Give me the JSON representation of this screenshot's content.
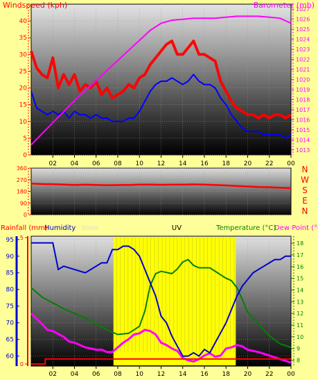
{
  "colors": {
    "page_bg": "#ffff99",
    "wind": "#ff0000",
    "wind_avg": "#0000ff",
    "barometer": "#ff00ff",
    "direction": "#ff0000",
    "rainfall": "#ff0000",
    "humidity": "#0000cc",
    "solar": "#ffff00",
    "uv": "#ff00ff",
    "temperature": "#008000",
    "dewpoint": "#ff00ff",
    "axis_left": "#ff0000",
    "axis_right": "#ff00ff",
    "axis_humidity": "#0000cc",
    "axis_temp": "#008000"
  },
  "x_ticks": [
    "02",
    "04",
    "06",
    "08",
    "10",
    "12",
    "14",
    "16",
    "18",
    "20",
    "22",
    "00"
  ],
  "chart_data": [
    {
      "type": "line",
      "name": "wind-barometer",
      "title": "",
      "left_axis_label": "Windspeed (kph)",
      "right_axis_label": "Barometer (mb)",
      "xlim": [
        0,
        24
      ],
      "ylim": [
        0,
        45
      ],
      "y2lim": [
        1012.5,
        1027.5
      ],
      "left_ticks": [
        0,
        5,
        10,
        15,
        20,
        25,
        30,
        35,
        40
      ],
      "right_ticks": [
        1013,
        1014,
        1015,
        1016,
        1017,
        1018,
        1019,
        1020,
        1021,
        1022,
        1023,
        1024,
        1025,
        1026,
        1027
      ],
      "series": [
        {
          "name": "Gust",
          "x": [
            0,
            0.5,
            1,
            1.5,
            2,
            2.5,
            3,
            3.5,
            4,
            4.5,
            5,
            5.5,
            6,
            6.5,
            7,
            7.5,
            8,
            8.5,
            9,
            9.5,
            10,
            10.5,
            11,
            11.5,
            12,
            12.5,
            13,
            13.5,
            14,
            14.5,
            15,
            15.5,
            16,
            16.5,
            17,
            17.5,
            18,
            18.5,
            19,
            19.5,
            20,
            20.5,
            21,
            21.5,
            22,
            22.5,
            23,
            23.5,
            24
          ],
          "values": [
            31,
            26,
            24,
            23,
            29,
            20,
            24,
            21,
            24,
            19,
            21,
            20,
            22,
            18,
            20,
            17,
            18,
            19,
            21,
            20,
            23,
            24,
            27,
            29,
            31,
            33,
            34,
            30,
            30,
            32,
            34,
            30,
            30,
            29,
            28,
            22,
            19,
            16,
            14,
            13,
            12,
            12,
            11,
            12,
            11,
            12,
            12,
            11,
            12
          ]
        },
        {
          "name": "Average",
          "x": [
            0,
            0.5,
            1,
            1.5,
            2,
            2.5,
            3,
            3.5,
            4,
            4.5,
            5,
            5.5,
            6,
            6.5,
            7,
            7.5,
            8,
            8.5,
            9,
            9.5,
            10,
            10.5,
            11,
            11.5,
            12,
            12.5,
            13,
            13.5,
            14,
            14.5,
            15,
            15.5,
            16,
            16.5,
            17,
            17.5,
            18,
            18.5,
            19,
            19.5,
            20,
            20.5,
            21,
            21.5,
            22,
            22.5,
            23,
            23.5,
            24
          ],
          "values": [
            19,
            14,
            13,
            12,
            13,
            12,
            13,
            11,
            13,
            12,
            12,
            11,
            12,
            11,
            11,
            10,
            10,
            10,
            11,
            11,
            13,
            16,
            19,
            21,
            22,
            22,
            23,
            22,
            21,
            22,
            24,
            22,
            21,
            21,
            20,
            17,
            15,
            12,
            10,
            8,
            7,
            7,
            7,
            6,
            6,
            6,
            6,
            5,
            6
          ]
        },
        {
          "name": "Barometer",
          "axis": "right",
          "x": [
            0,
            1,
            2,
            3,
            4,
            5,
            6,
            7,
            8,
            9,
            10,
            11,
            12,
            13,
            14,
            15,
            16,
            17,
            18,
            19,
            20,
            21,
            22,
            23,
            24
          ],
          "values": [
            1013.5,
            1014.6,
            1015.7,
            1016.8,
            1017.9,
            1018.9,
            1019.9,
            1020.9,
            1021.9,
            1022.9,
            1023.9,
            1024.9,
            1025.6,
            1025.9,
            1026.0,
            1026.1,
            1026.1,
            1026.1,
            1026.2,
            1026.3,
            1026.3,
            1026.3,
            1026.2,
            1026.1,
            1025.6
          ]
        }
      ]
    },
    {
      "type": "line",
      "name": "wind-direction",
      "xlim": [
        0,
        24
      ],
      "ylim": [
        0,
        360
      ],
      "left_ticks": [
        0,
        90,
        180,
        270,
        360
      ],
      "compass_labels": [
        "N",
        "W",
        "S",
        "E",
        "N"
      ],
      "series": [
        {
          "name": "Direction",
          "x": [
            0,
            1,
            2,
            3,
            4,
            5,
            6,
            7,
            8,
            9,
            10,
            11,
            12,
            13,
            14,
            15,
            16,
            17,
            18,
            19,
            20,
            21,
            22,
            23,
            24
          ],
          "values": [
            240,
            237,
            236,
            233,
            230,
            232,
            230,
            228,
            229,
            230,
            232,
            233,
            231,
            232,
            232,
            234,
            232,
            230,
            226,
            222,
            218,
            214,
            212,
            208,
            205
          ]
        }
      ]
    },
    {
      "type": "line",
      "name": "rain-humidity-solar-temp",
      "legend": [
        {
          "label": "Rainfall (mm)",
          "color": "#ff0000"
        },
        {
          "label": "Humidity",
          "color": "#0000cc"
        },
        {
          "label": "Solar",
          "color": "#e0e0c0"
        },
        {
          "label": "UV",
          "color": "#000000"
        },
        {
          "label": "Temperature (°C)",
          "color": "#008000"
        },
        {
          "label": "Dew Point (°C)",
          "color": "#ff00ff"
        }
      ],
      "xlim": [
        0,
        24
      ],
      "rain_lim": [
        0,
        5
      ],
      "rain_ticks": [
        0,
        5
      ],
      "humidity_lim": [
        57,
        96
      ],
      "humidity_ticks": [
        60,
        65,
        70,
        75,
        80,
        85,
        90,
        95
      ],
      "temp_lim": [
        7.5,
        18.6
      ],
      "temp_ticks": [
        8,
        9,
        10,
        11,
        12,
        13,
        14,
        15,
        16,
        17,
        18
      ],
      "solar_band": [
        7.6,
        18.9
      ],
      "series": [
        {
          "name": "Humidity",
          "x": [
            0,
            1,
            1.5,
            2,
            2.5,
            3,
            4,
            5,
            6,
            6.5,
            7,
            7.5,
            8,
            8.5,
            9,
            9.5,
            10,
            10.5,
            11,
            11.5,
            12,
            12.5,
            13,
            13.5,
            14,
            14.5,
            15,
            15.5,
            16,
            16.5,
            17,
            17.5,
            18,
            18.5,
            19,
            19.5,
            20,
            20.5,
            21,
            21.5,
            22,
            22.5,
            23,
            23.5,
            24
          ],
          "values": [
            94,
            94,
            94,
            94,
            86,
            87,
            86,
            85,
            87,
            88,
            88,
            92,
            92,
            93,
            93,
            92,
            90,
            86,
            82,
            78,
            72,
            70,
            66,
            63,
            60,
            60,
            61,
            60,
            62,
            61,
            64,
            67,
            70,
            74,
            78,
            81,
            83,
            85,
            86,
            87,
            88,
            89,
            89,
            90,
            90
          ]
        },
        {
          "name": "Temperature",
          "x": [
            0,
            1,
            2,
            3,
            4,
            5,
            6,
            7,
            8,
            9,
            10,
            10.5,
            11,
            11.5,
            12,
            12.5,
            13,
            13.5,
            14,
            14.5,
            15,
            15.5,
            16,
            16.5,
            17,
            17.5,
            18,
            18.5,
            19,
            19.5,
            20,
            21,
            22,
            23,
            24
          ],
          "values": [
            14.2,
            13.4,
            12.9,
            12.4,
            12.0,
            11.6,
            11.1,
            10.6,
            10.2,
            10.3,
            10.9,
            12.2,
            14.4,
            15.4,
            15.6,
            15.5,
            15.4,
            15.8,
            16.4,
            16.6,
            16.1,
            15.9,
            15.9,
            15.9,
            15.6,
            15.3,
            15.0,
            14.8,
            14.2,
            13.2,
            12.1,
            11.1,
            10.1,
            9.4,
            9.1
          ]
        },
        {
          "name": "Dew Point",
          "x": [
            0,
            1,
            1.5,
            2,
            3,
            3.5,
            4,
            5,
            6,
            6.5,
            7,
            7.5,
            8,
            8.5,
            9,
            9.5,
            10,
            10.5,
            11,
            11.5,
            12,
            12.5,
            13,
            13.5,
            14,
            14.5,
            15,
            15.5,
            16,
            16.5,
            17,
            17.5,
            18,
            18.5,
            19,
            19.5,
            20,
            21,
            22,
            23,
            24
          ],
          "values": [
            12.0,
            11.1,
            10.6,
            10.5,
            10.0,
            9.6,
            9.5,
            9.1,
            8.9,
            8.9,
            8.7,
            8.7,
            9.1,
            9.5,
            9.8,
            10.2,
            10.3,
            10.6,
            10.5,
            10.2,
            9.5,
            9.3,
            9.0,
            8.8,
            8.2,
            8.0,
            7.9,
            8.1,
            8.4,
            8.6,
            8.3,
            8.4,
            9.0,
            9.1,
            9.3,
            9.2,
            8.9,
            8.7,
            8.4,
            8.1,
            7.8
          ]
        },
        {
          "name": "Rainfall",
          "x": [
            0,
            1.3,
            1.3,
            24
          ],
          "values": [
            0,
            0,
            0.2,
            0.2
          ]
        }
      ]
    }
  ]
}
